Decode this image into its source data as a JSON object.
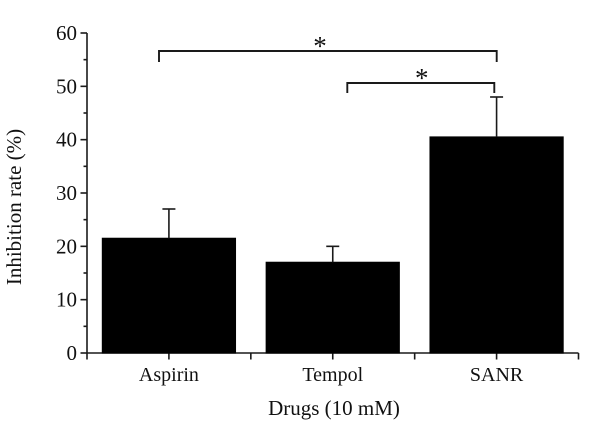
{
  "chart_data": {
    "type": "bar",
    "title": "",
    "categories": [
      "Aspirin",
      "Tempol",
      "SANR"
    ],
    "values": [
      21.5,
      17,
      40.5
    ],
    "errors": [
      5.5,
      3,
      7.5
    ],
    "error_direction": "plus-only",
    "xlabel": "Drugs (10 mM)",
    "ylabel": "Inhibition rate (%)",
    "ylim": [
      0,
      60
    ],
    "yticks": [
      0,
      10,
      20,
      30,
      40,
      50,
      60
    ],
    "y_minor_step": 5,
    "bar_color": "#000000",
    "axis_color": "#1a1a1a",
    "grid": false,
    "legend": false,
    "significance": [
      {
        "between": [
          "Aspirin",
          "SANR"
        ],
        "label": "*"
      },
      {
        "between": [
          "Tempol",
          "SANR"
        ],
        "label": "*"
      }
    ]
  }
}
